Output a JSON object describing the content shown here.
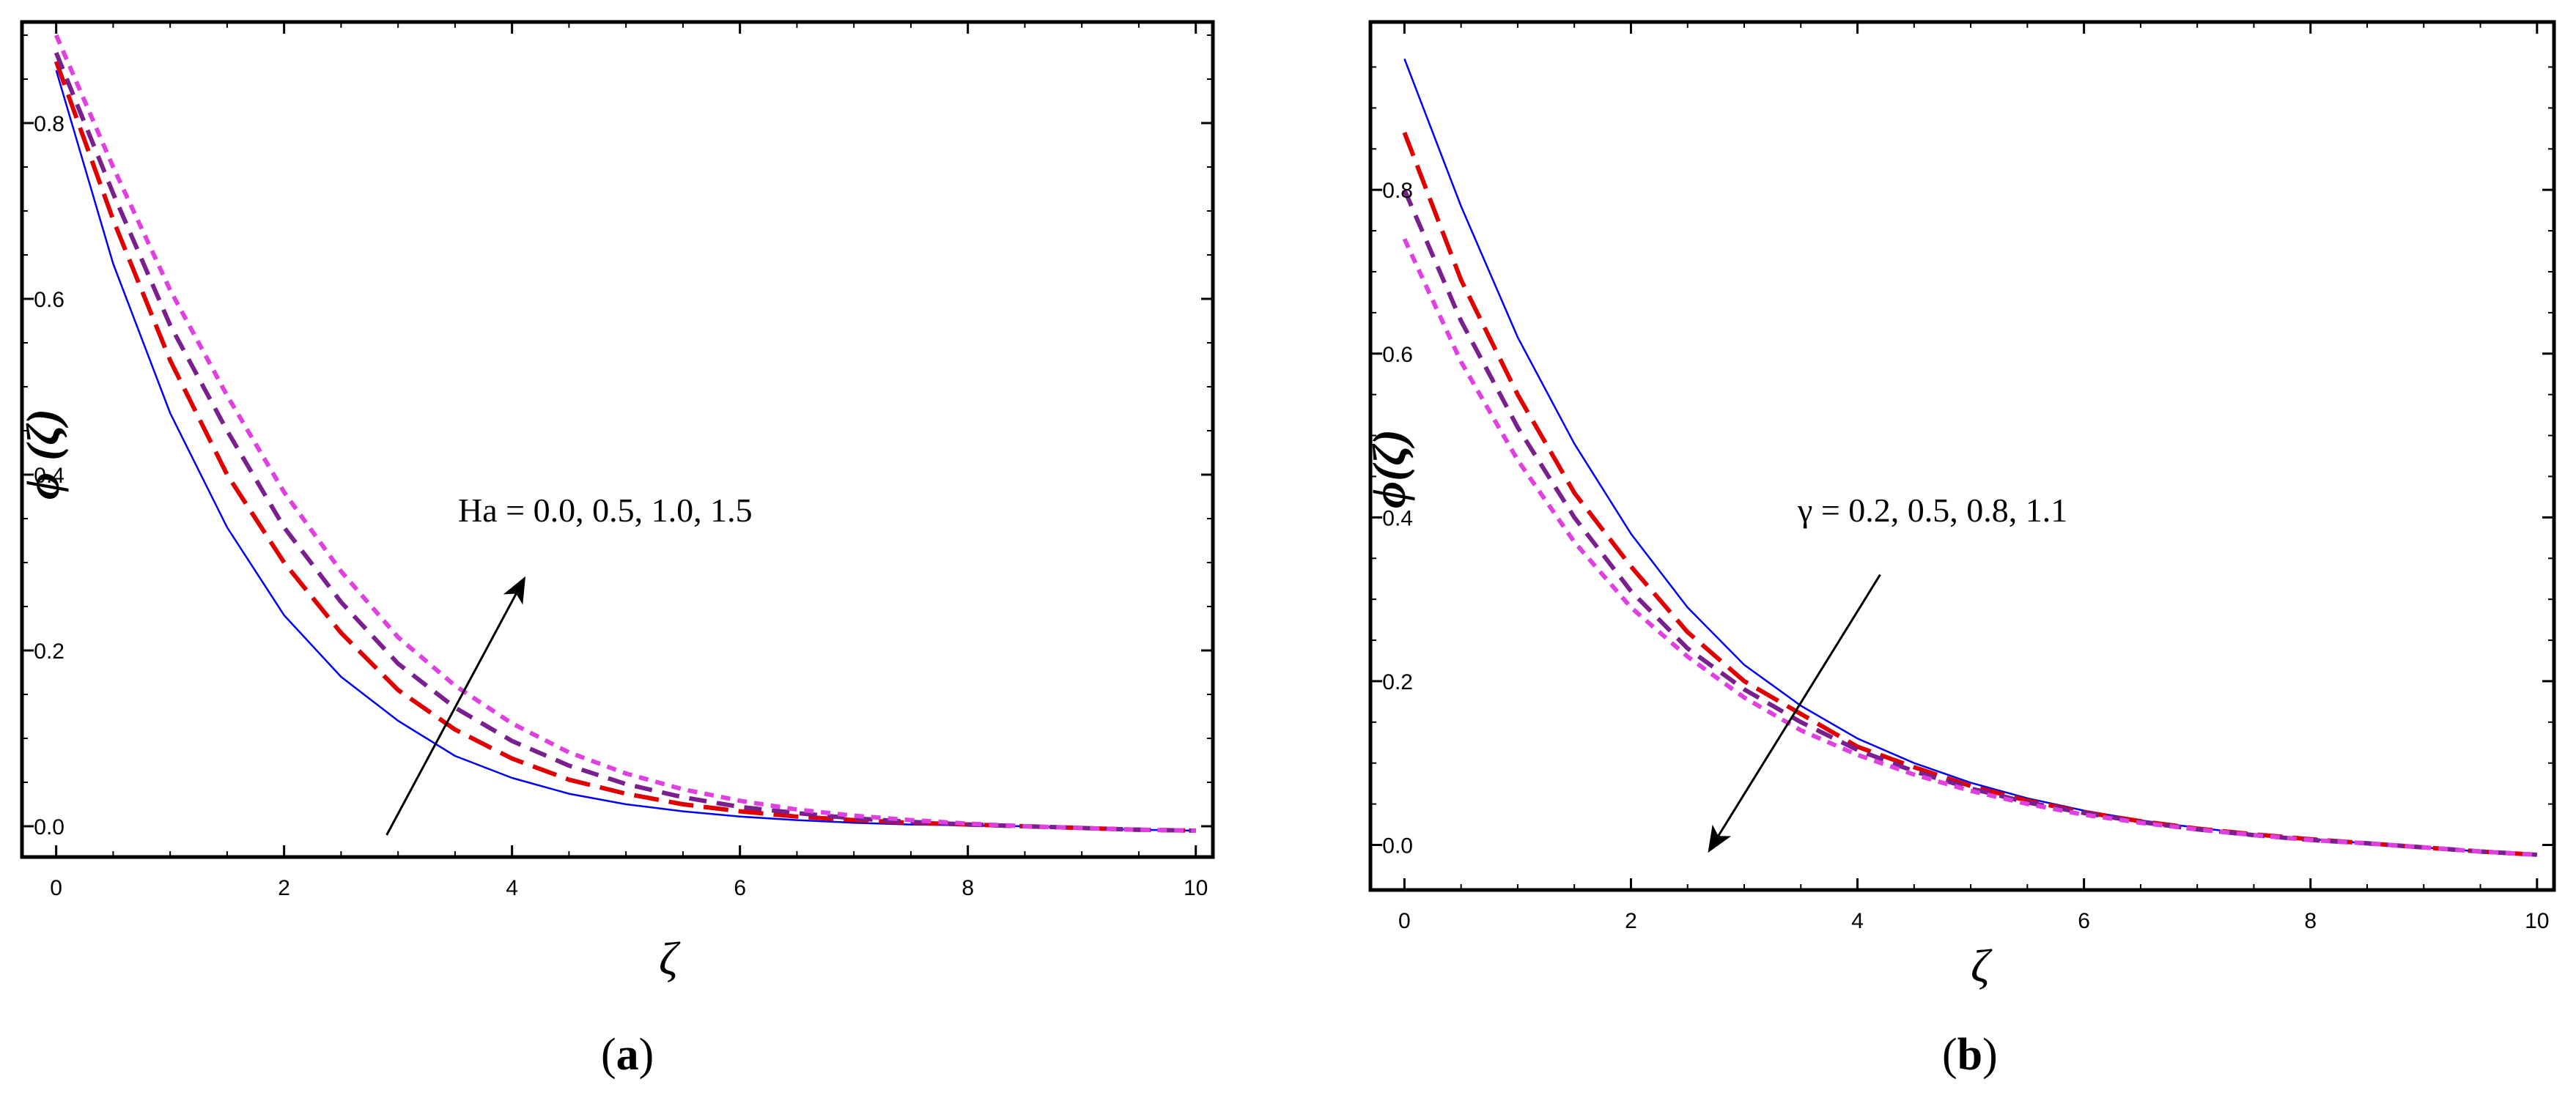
{
  "chart_data": [
    {
      "type": "line",
      "panel": "a",
      "caption_open": "(",
      "caption_letter": "a",
      "caption_close": ")",
      "xlabel": "ζ",
      "ylabel": "ϕ (ζ)",
      "xlim": [
        -0.3,
        10.15
      ],
      "ylim": [
        -0.035,
        0.915
      ],
      "xticks": [
        0,
        2,
        4,
        6,
        8,
        10
      ],
      "yticks": [
        0.0,
        0.2,
        0.4,
        0.6,
        0.8
      ],
      "annotation": "Ha = 0.0, 0.5, 1.0, 1.5",
      "arrow": {
        "from": [
          2.9,
          -0.01
        ],
        "to": [
          4.1,
          0.28
        ]
      },
      "x": [
        0,
        0.5,
        1,
        1.5,
        2,
        2.5,
        3,
        3.5,
        4,
        4.5,
        5,
        5.5,
        6,
        6.5,
        7,
        7.5,
        8,
        8.5,
        9,
        9.5,
        10
      ],
      "series": [
        {
          "name": "Ha = 0.0",
          "color": "#0000ff",
          "dash": "solid",
          "values": [
            0.86,
            0.64,
            0.47,
            0.34,
            0.24,
            0.17,
            0.12,
            0.08,
            0.055,
            0.037,
            0.025,
            0.017,
            0.011,
            0.007,
            0.004,
            0.002,
            0.001,
            0.0,
            -0.002,
            -0.004,
            -0.005
          ]
        },
        {
          "name": "Ha = 0.5",
          "color": "#e00000",
          "dash": "long",
          "values": [
            0.87,
            0.69,
            0.53,
            0.4,
            0.3,
            0.22,
            0.155,
            0.11,
            0.077,
            0.053,
            0.037,
            0.025,
            0.017,
            0.011,
            0.007,
            0.004,
            0.002,
            0.0,
            -0.002,
            -0.004,
            -0.005
          ]
        },
        {
          "name": "Ha = 1.0",
          "color": "#7a1f8e",
          "dash": "medium",
          "values": [
            0.88,
            0.72,
            0.57,
            0.45,
            0.34,
            0.255,
            0.185,
            0.135,
            0.097,
            0.069,
            0.048,
            0.033,
            0.022,
            0.015,
            0.009,
            0.005,
            0.002,
            0.0,
            -0.002,
            -0.004,
            -0.005
          ]
        },
        {
          "name": "Ha = 1.5",
          "color": "#e040e0",
          "dash": "short",
          "values": [
            0.9,
            0.75,
            0.61,
            0.49,
            0.38,
            0.29,
            0.215,
            0.16,
            0.117,
            0.084,
            0.06,
            0.042,
            0.029,
            0.019,
            0.012,
            0.007,
            0.003,
            0.0,
            -0.002,
            -0.004,
            -0.005
          ]
        }
      ]
    },
    {
      "type": "line",
      "panel": "b",
      "caption_open": "(",
      "caption_letter": "b",
      "caption_close": ")",
      "xlabel": "ζ",
      "ylabel": "ϕ(ζ)",
      "xlim": [
        -0.3,
        10.15
      ],
      "ylim": [
        -0.055,
        1.005
      ],
      "xticks": [
        0,
        2,
        4,
        6,
        8,
        10
      ],
      "yticks": [
        0.0,
        0.2,
        0.4,
        0.6,
        0.8
      ],
      "annotation": "γ = 0.2, 0.5, 0.8, 1.1",
      "arrow": {
        "from": [
          4.2,
          0.33
        ],
        "to": [
          2.7,
          -0.005
        ]
      },
      "x": [
        0,
        0.5,
        1,
        1.5,
        2,
        2.5,
        3,
        3.5,
        4,
        4.5,
        5,
        5.5,
        6,
        6.5,
        7,
        7.5,
        8,
        8.5,
        9,
        9.5,
        10
      ],
      "series": [
        {
          "name": "γ = 0.2",
          "color": "#0000ff",
          "dash": "solid",
          "values": [
            0.96,
            0.78,
            0.62,
            0.49,
            0.38,
            0.29,
            0.22,
            0.17,
            0.13,
            0.1,
            0.076,
            0.057,
            0.042,
            0.03,
            0.021,
            0.013,
            0.007,
            0.002,
            -0.003,
            -0.008,
            -0.012
          ]
        },
        {
          "name": "γ = 0.5",
          "color": "#e00000",
          "dash": "long",
          "values": [
            0.87,
            0.69,
            0.55,
            0.43,
            0.34,
            0.26,
            0.2,
            0.16,
            0.12,
            0.095,
            0.072,
            0.054,
            0.04,
            0.029,
            0.02,
            0.013,
            0.007,
            0.002,
            -0.003,
            -0.008,
            -0.012
          ]
        },
        {
          "name": "γ = 0.8",
          "color": "#7a1f8e",
          "dash": "medium",
          "values": [
            0.8,
            0.64,
            0.51,
            0.4,
            0.31,
            0.24,
            0.19,
            0.15,
            0.116,
            0.09,
            0.069,
            0.052,
            0.039,
            0.028,
            0.019,
            0.012,
            0.006,
            0.002,
            -0.003,
            -0.008,
            -0.012
          ]
        },
        {
          "name": "γ = 1.1",
          "color": "#e040e0",
          "dash": "short",
          "values": [
            0.74,
            0.59,
            0.47,
            0.37,
            0.29,
            0.23,
            0.18,
            0.14,
            0.11,
            0.086,
            0.066,
            0.05,
            0.037,
            0.027,
            0.019,
            0.012,
            0.006,
            0.002,
            -0.003,
            -0.008,
            -0.012
          ]
        }
      ]
    }
  ]
}
